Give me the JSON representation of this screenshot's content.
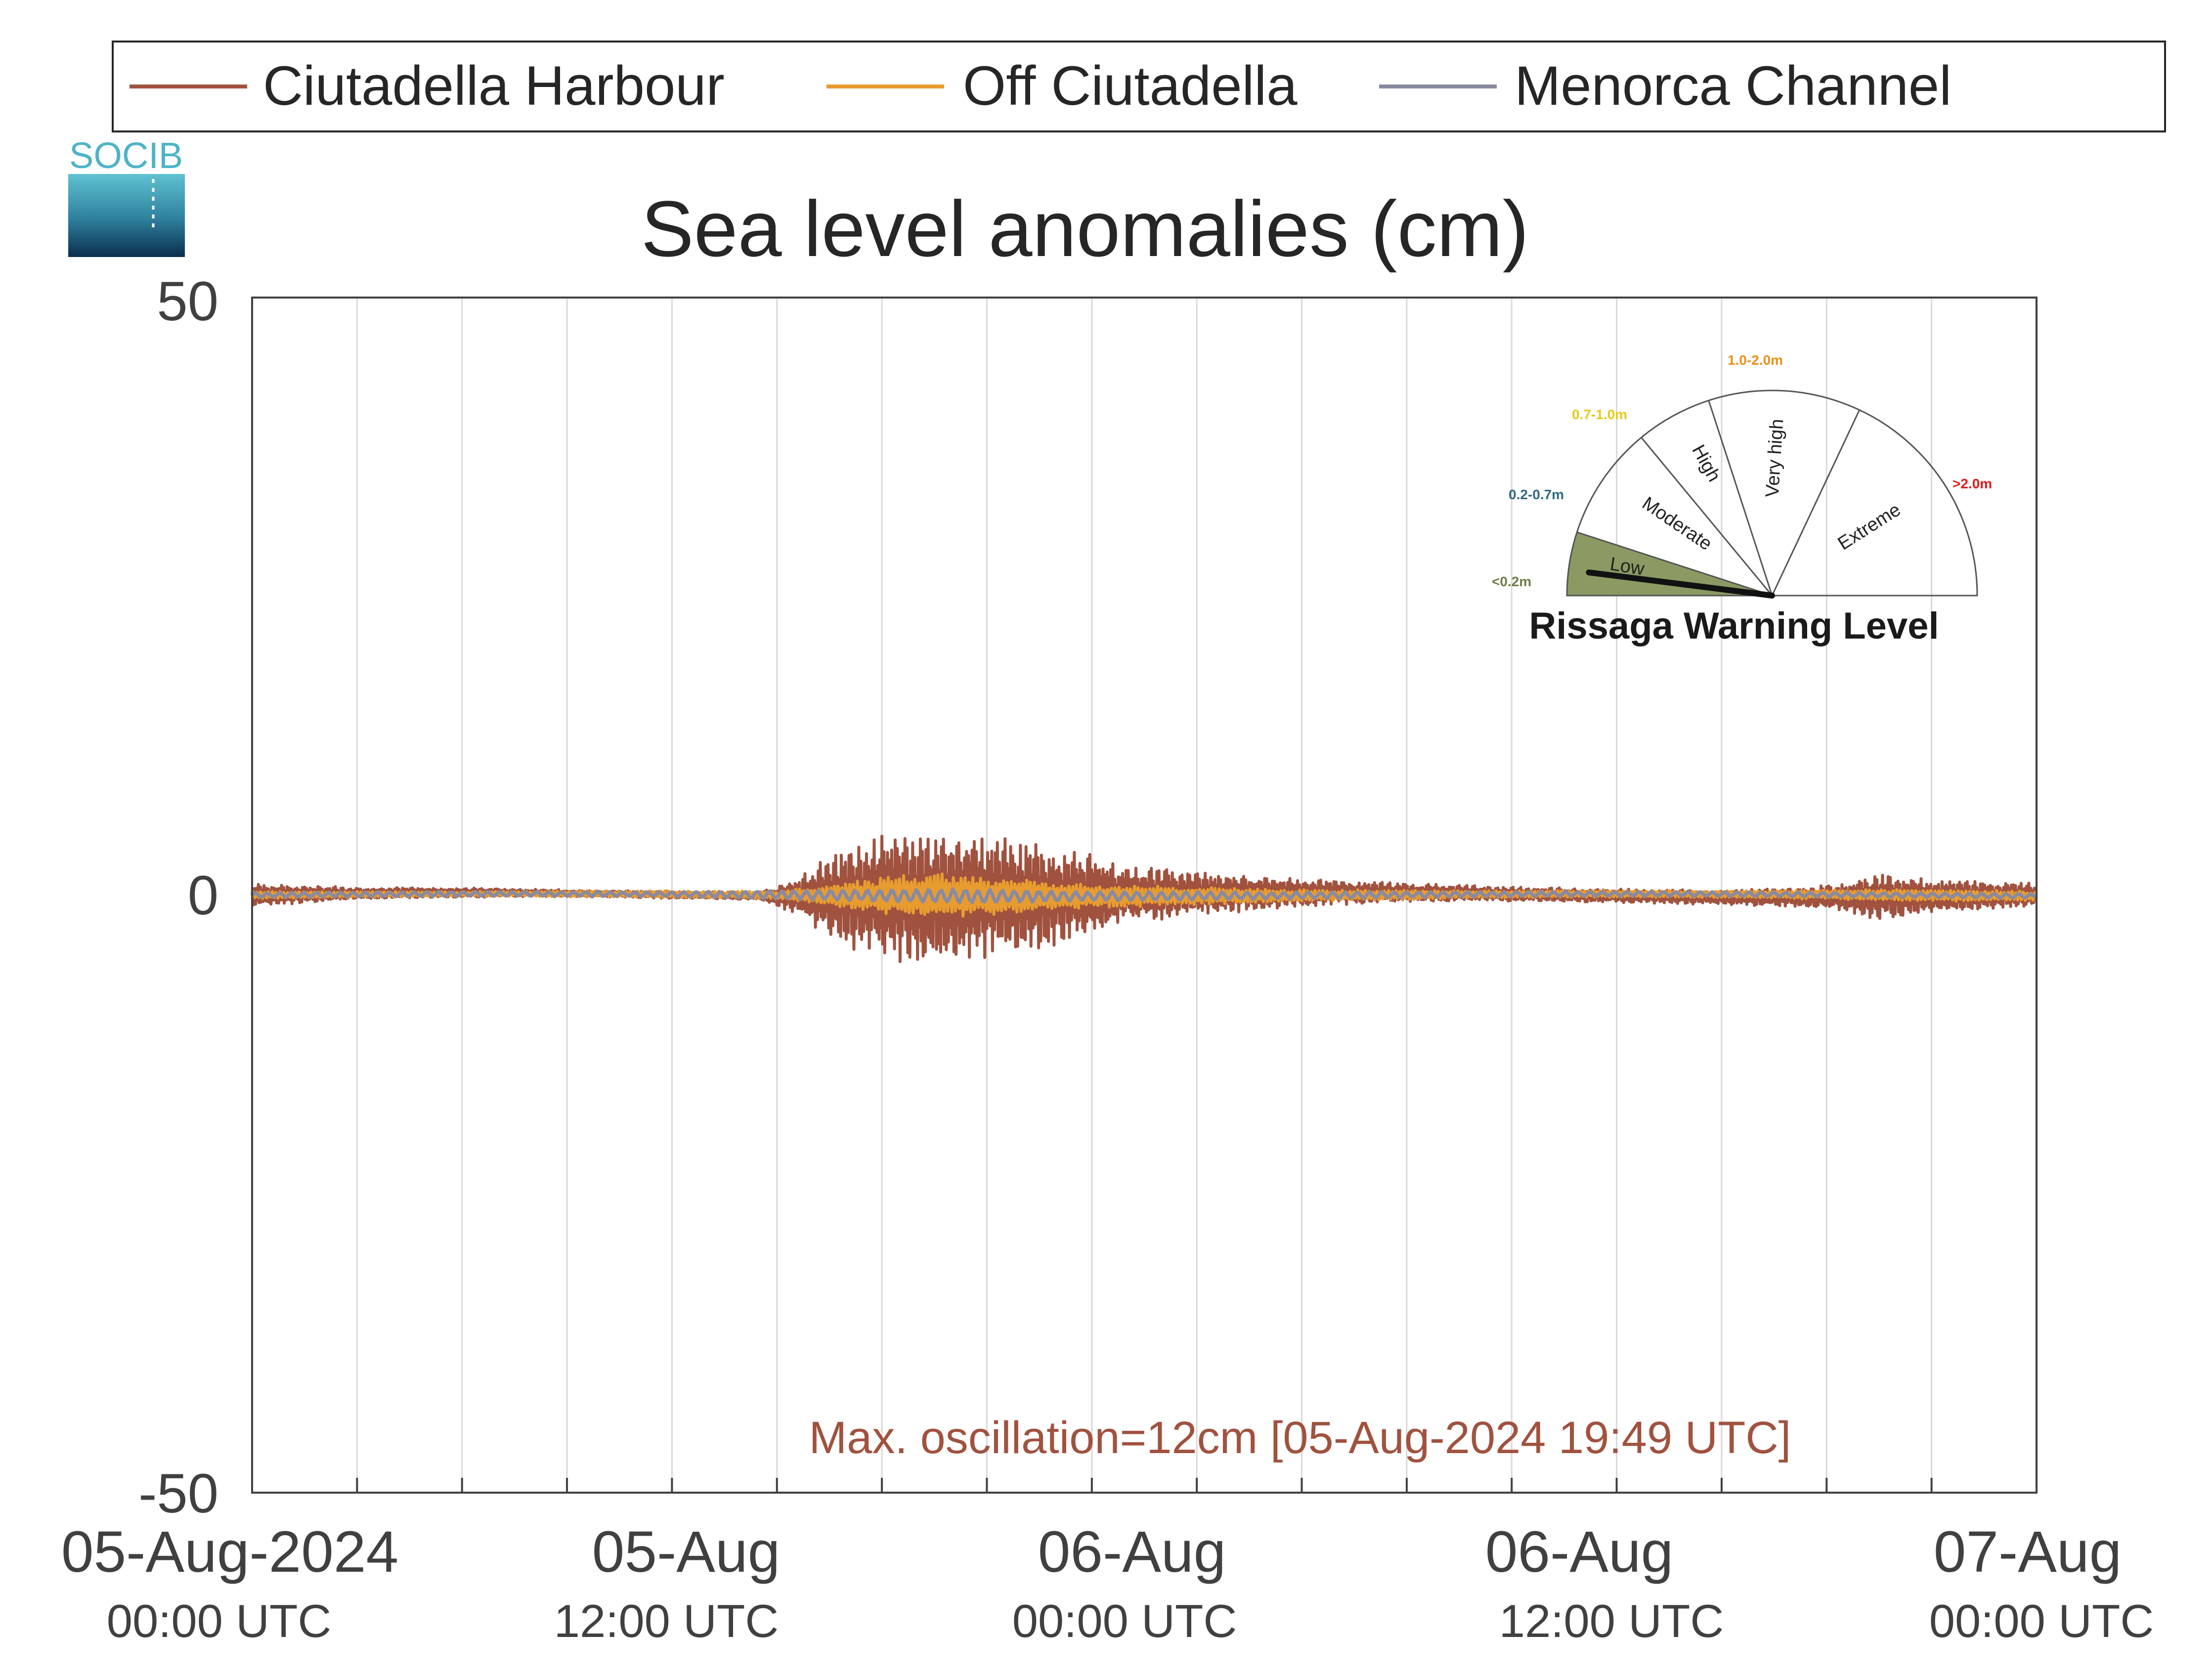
{
  "logo": {
    "text": "SOCIB"
  },
  "colors": {
    "ciutadella_harbour": "#a0523f",
    "off_ciutadella": "#e89c30",
    "menorca_channel": "#8a8aa0",
    "grid": "#d9d9d9",
    "axis": "#404040",
    "gauge_low": "#8a9a62",
    "logo": "#4fb3c8"
  },
  "chart_data": {
    "type": "line",
    "title": "Sea level anomalies (cm)",
    "xlabel": "",
    "ylabel": "",
    "ylim": [
      -50,
      50
    ],
    "yticks": [
      "50",
      "0",
      "-50"
    ],
    "xlim": [
      "2024-08-05T00:00Z",
      "2024-08-07T04:00Z"
    ],
    "xticks": [
      {
        "date": "05-Aug-2024",
        "time": "00:00 UTC"
      },
      {
        "date": "05-Aug",
        "time": "12:00 UTC"
      },
      {
        "date": "06-Aug",
        "time": "00:00 UTC"
      },
      {
        "date": "06-Aug",
        "time": "12:00 UTC"
      },
      {
        "date": "07-Aug",
        "time": "00:00 UTC"
      }
    ],
    "grid": "vertical every 3 hours",
    "legend_position": "top",
    "series": [
      {
        "name": "Ciutadella Harbour",
        "envelope_x_hours": [
          0,
          3,
          6,
          9,
          12,
          14.5,
          15.5,
          16.5,
          17.5,
          18.5,
          19.5,
          20.5,
          21.5,
          22.5,
          24,
          25,
          27,
          30,
          33,
          36,
          39,
          42,
          44,
          45.5,
          46.5,
          48,
          51
        ],
        "envelope_amplitude_cm": [
          1.0,
          0.5,
          0.4,
          0.3,
          0.3,
          0.3,
          1.5,
          3.5,
          5.0,
          5.5,
          6.0,
          5.5,
          5.0,
          4.5,
          3.5,
          2.5,
          1.8,
          1.2,
          0.8,
          0.6,
          0.6,
          0.6,
          0.8,
          1.2,
          2.0,
          1.4,
          1.0
        ]
      },
      {
        "name": "Off Ciutadella",
        "envelope_x_hours": [
          0,
          6,
          12,
          15,
          18,
          19.5,
          21,
          24,
          30,
          36,
          42,
          48,
          51
        ],
        "envelope_amplitude_cm": [
          0.3,
          0.2,
          0.3,
          0.3,
          1.5,
          2.0,
          1.6,
          1.0,
          0.5,
          0.3,
          0.3,
          0.5,
          0.4
        ]
      },
      {
        "name": "Menorca Channel",
        "envelope_x_hours": [
          0,
          12,
          18,
          20,
          24,
          36,
          51
        ],
        "envelope_amplitude_cm": [
          0.2,
          0.2,
          0.5,
          0.6,
          0.4,
          0.2,
          0.2
        ]
      }
    ],
    "annotation": "Max. oscillation=12cm [05-Aug-2024 19:49 UTC]"
  },
  "gauge": {
    "title": "Rissaga Warning Level",
    "segments": [
      "Low",
      "Moderate",
      "High",
      "Very high",
      "Extreme"
    ],
    "thresholds": [
      "<0.2m",
      "0.2-0.7m",
      "0.7-1.0m",
      "1.0-2.0m",
      ">2.0m"
    ],
    "threshold_colors": [
      "#6f7d45",
      "#2e6a80",
      "#e8c81a",
      "#e8901a",
      "#e01a1a"
    ],
    "current_level": "Low",
    "needle_fraction": 0.04
  }
}
